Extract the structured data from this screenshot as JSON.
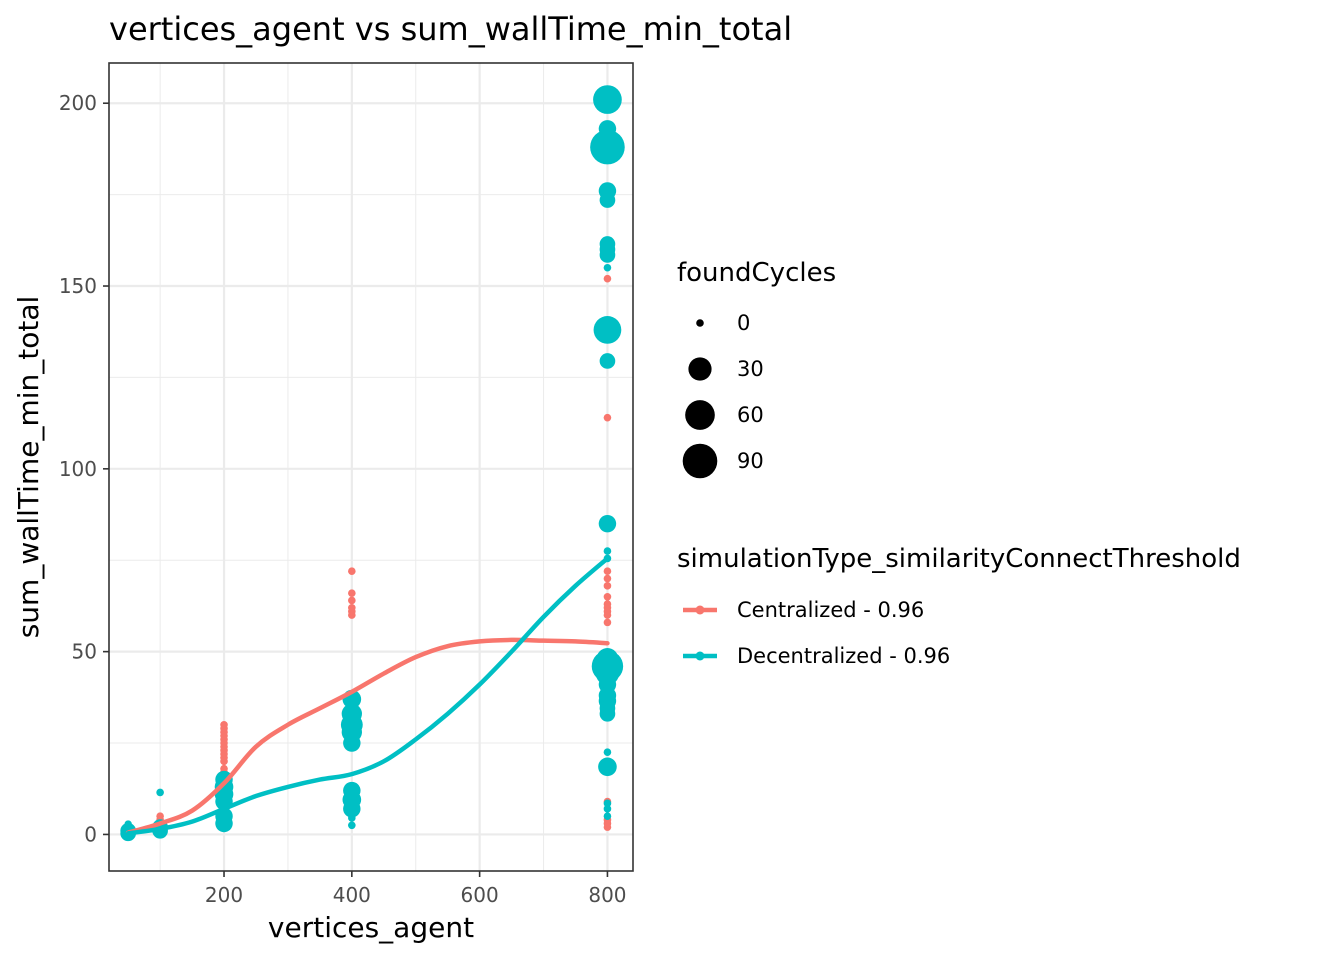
{
  "chart_data": {
    "type": "scatter",
    "title": "vertices_agent  vs  sum_wallTime_min_total",
    "xlabel": "vertices_agent",
    "ylabel": "sum_wallTime_min_total",
    "xlim": [
      20,
      840
    ],
    "ylim": [
      -10,
      211
    ],
    "x_ticks": [
      200,
      400,
      600,
      800
    ],
    "x_tick_labels": [
      "200",
      "400",
      "600",
      "800"
    ],
    "y_ticks": [
      0,
      50,
      100,
      150,
      200
    ],
    "y_tick_labels": [
      "0",
      "50",
      "100",
      "150",
      "200"
    ],
    "grid": true,
    "legend_position": "right",
    "size_legend": {
      "title": "foundCycles",
      "entries": [
        {
          "label": "0",
          "value": 0
        },
        {
          "label": "30",
          "value": 30
        },
        {
          "label": "60",
          "value": 60
        },
        {
          "label": "90",
          "value": 90
        }
      ]
    },
    "color_legend": {
      "title": "simulationType_similarityConnectThreshold",
      "entries": [
        {
          "label": "Centralized - 0.96",
          "color": "#F8766D"
        },
        {
          "label": "Decentralized - 0.96",
          "color": "#00BFC4"
        }
      ]
    },
    "series": [
      {
        "name": "Centralized - 0.96",
        "color": "#F8766D",
        "points": [
          {
            "x": 50,
            "y": 0.5,
            "size": 0
          },
          {
            "x": 50,
            "y": 1.5,
            "size": 0
          },
          {
            "x": 100,
            "y": 2.0,
            "size": 0
          },
          {
            "x": 100,
            "y": 3.0,
            "size": 0
          },
          {
            "x": 100,
            "y": 4.0,
            "size": 0
          },
          {
            "x": 100,
            "y": 5.0,
            "size": 0
          },
          {
            "x": 200,
            "y": 30.0,
            "size": 0
          },
          {
            "x": 200,
            "y": 29.0,
            "size": 0
          },
          {
            "x": 200,
            "y": 28.0,
            "size": 0
          },
          {
            "x": 200,
            "y": 27.0,
            "size": 0
          },
          {
            "x": 200,
            "y": 26.0,
            "size": 0
          },
          {
            "x": 200,
            "y": 25.0,
            "size": 0
          },
          {
            "x": 200,
            "y": 24.0,
            "size": 0
          },
          {
            "x": 200,
            "y": 23.0,
            "size": 0
          },
          {
            "x": 200,
            "y": 22.0,
            "size": 0
          },
          {
            "x": 200,
            "y": 21.0,
            "size": 0
          },
          {
            "x": 200,
            "y": 20.0,
            "size": 0
          },
          {
            "x": 200,
            "y": 18.0,
            "size": 0
          },
          {
            "x": 200,
            "y": 17.0,
            "size": 0
          },
          {
            "x": 200,
            "y": 16.0,
            "size": 0
          },
          {
            "x": 200,
            "y": 15.0,
            "size": 0
          },
          {
            "x": 400,
            "y": 72.0,
            "size": 0
          },
          {
            "x": 400,
            "y": 66.0,
            "size": 0
          },
          {
            "x": 400,
            "y": 64.0,
            "size": 0
          },
          {
            "x": 400,
            "y": 62.0,
            "size": 0
          },
          {
            "x": 400,
            "y": 61.0,
            "size": 0
          },
          {
            "x": 400,
            "y": 60.0,
            "size": 0
          },
          {
            "x": 800,
            "y": 152.0,
            "size": 0
          },
          {
            "x": 800,
            "y": 114.0,
            "size": 0
          },
          {
            "x": 800,
            "y": 72.0,
            "size": 0
          },
          {
            "x": 800,
            "y": 70.0,
            "size": 0
          },
          {
            "x": 800,
            "y": 68.0,
            "size": 0
          },
          {
            "x": 800,
            "y": 65.0,
            "size": 0
          },
          {
            "x": 800,
            "y": 63.0,
            "size": 0
          },
          {
            "x": 800,
            "y": 62.0,
            "size": 0
          },
          {
            "x": 800,
            "y": 61.0,
            "size": 0
          },
          {
            "x": 800,
            "y": 60.0,
            "size": 0
          },
          {
            "x": 800,
            "y": 58.0,
            "size": 0
          },
          {
            "x": 800,
            "y": 9.0,
            "size": 0
          },
          {
            "x": 800,
            "y": 4.0,
            "size": 0
          },
          {
            "x": 800,
            "y": 3.0,
            "size": 0
          },
          {
            "x": 800,
            "y": 2.0,
            "size": 0
          }
        ],
        "smooth": [
          [
            50,
            0.5
          ],
          [
            100,
            3
          ],
          [
            150,
            6.5
          ],
          [
            200,
            14
          ],
          [
            250,
            24
          ],
          [
            300,
            30
          ],
          [
            350,
            34.5
          ],
          [
            400,
            39
          ],
          [
            450,
            44
          ],
          [
            500,
            48.5
          ],
          [
            550,
            51.5
          ],
          [
            600,
            52.8
          ],
          [
            650,
            53.2
          ],
          [
            700,
            53
          ],
          [
            750,
            52.8
          ],
          [
            800,
            52.3
          ]
        ]
      },
      {
        "name": "Decentralized - 0.96",
        "color": "#00BFC4",
        "points": [
          {
            "x": 50,
            "y": 0.3,
            "size": 8
          },
          {
            "x": 50,
            "y": 1.0,
            "size": 8
          },
          {
            "x": 50,
            "y": 2.8,
            "size": 0
          },
          {
            "x": 100,
            "y": 11.5,
            "size": 0
          },
          {
            "x": 100,
            "y": 1.0,
            "size": 8
          },
          {
            "x": 100,
            "y": 2.0,
            "size": 8
          },
          {
            "x": 200,
            "y": 15.0,
            "size": 12
          },
          {
            "x": 200,
            "y": 13.0,
            "size": 15
          },
          {
            "x": 200,
            "y": 11.0,
            "size": 15
          },
          {
            "x": 200,
            "y": 9.0,
            "size": 12
          },
          {
            "x": 200,
            "y": 5.0,
            "size": 12
          },
          {
            "x": 200,
            "y": 3.0,
            "size": 12
          },
          {
            "x": 400,
            "y": 37.0,
            "size": 15
          },
          {
            "x": 400,
            "y": 33.0,
            "size": 20
          },
          {
            "x": 400,
            "y": 30.0,
            "size": 25
          },
          {
            "x": 400,
            "y": 28.0,
            "size": 20
          },
          {
            "x": 400,
            "y": 25.0,
            "size": 12
          },
          {
            "x": 400,
            "y": 12.0,
            "size": 12
          },
          {
            "x": 400,
            "y": 9.5,
            "size": 15
          },
          {
            "x": 400,
            "y": 7.0,
            "size": 12
          },
          {
            "x": 400,
            "y": 4.5,
            "size": 0
          },
          {
            "x": 400,
            "y": 2.5,
            "size": 0
          },
          {
            "x": 800,
            "y": 201.0,
            "size": 55
          },
          {
            "x": 800,
            "y": 193.0,
            "size": 12
          },
          {
            "x": 800,
            "y": 188.0,
            "size": 90
          },
          {
            "x": 800,
            "y": 176.0,
            "size": 12
          },
          {
            "x": 800,
            "y": 173.5,
            "size": 8
          },
          {
            "x": 800,
            "y": 161.5,
            "size": 8
          },
          {
            "x": 800,
            "y": 160.0,
            "size": 8
          },
          {
            "x": 800,
            "y": 158.5,
            "size": 8
          },
          {
            "x": 800,
            "y": 155.0,
            "size": 0
          },
          {
            "x": 800,
            "y": 138.0,
            "size": 50
          },
          {
            "x": 800,
            "y": 129.5,
            "size": 8
          },
          {
            "x": 800,
            "y": 85.0,
            "size": 12
          },
          {
            "x": 800,
            "y": 77.5,
            "size": 0
          },
          {
            "x": 800,
            "y": 75.5,
            "size": 0
          },
          {
            "x": 800,
            "y": 48.0,
            "size": 25
          },
          {
            "x": 800,
            "y": 46.0,
            "size": 70
          },
          {
            "x": 800,
            "y": 44.0,
            "size": 30
          },
          {
            "x": 800,
            "y": 41.0,
            "size": 12
          },
          {
            "x": 800,
            "y": 38.0,
            "size": 12
          },
          {
            "x": 800,
            "y": 36.5,
            "size": 12
          },
          {
            "x": 800,
            "y": 34.5,
            "size": 8
          },
          {
            "x": 800,
            "y": 33.0,
            "size": 8
          },
          {
            "x": 800,
            "y": 22.5,
            "size": 0
          },
          {
            "x": 800,
            "y": 18.5,
            "size": 15
          },
          {
            "x": 800,
            "y": 8.5,
            "size": 0
          },
          {
            "x": 800,
            "y": 7.0,
            "size": 0
          },
          {
            "x": 800,
            "y": 5.0,
            "size": 0
          }
        ],
        "smooth": [
          [
            50,
            0.3
          ],
          [
            100,
            1.5
          ],
          [
            150,
            3.5
          ],
          [
            200,
            7
          ],
          [
            250,
            10.5
          ],
          [
            300,
            13
          ],
          [
            350,
            15
          ],
          [
            400,
            16.5
          ],
          [
            450,
            20
          ],
          [
            500,
            26
          ],
          [
            550,
            33
          ],
          [
            600,
            41
          ],
          [
            650,
            50
          ],
          [
            700,
            59.5
          ],
          [
            750,
            68
          ],
          [
            800,
            75.5
          ]
        ]
      }
    ]
  }
}
